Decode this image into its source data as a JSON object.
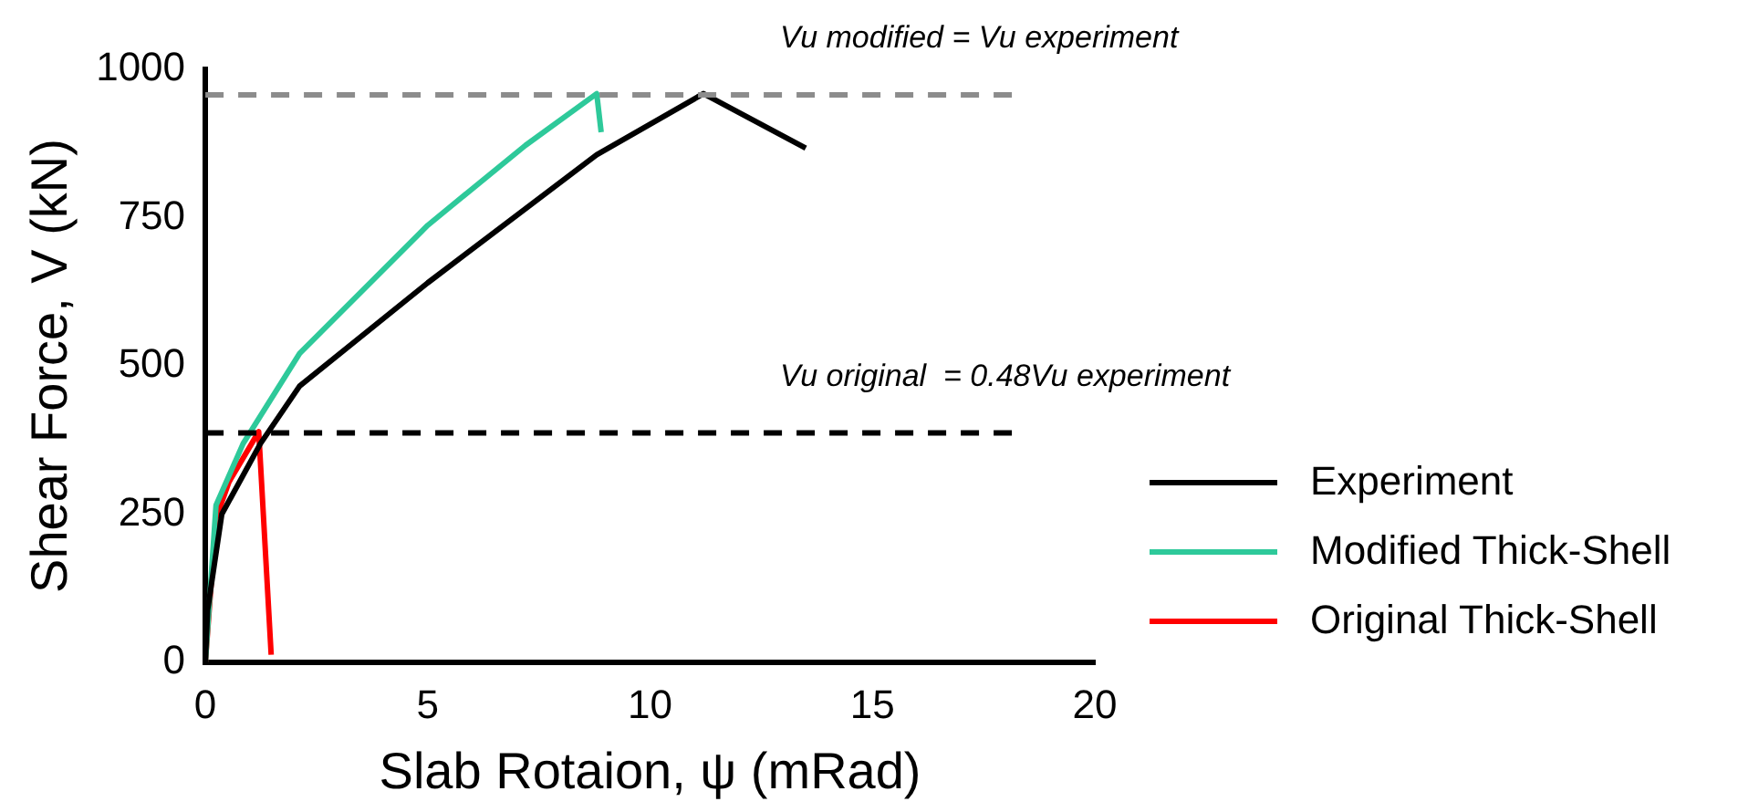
{
  "chart_data": {
    "type": "line",
    "xlabel": "Slab Rotaion, ψ (mRad)",
    "ylabel": "Shear Force, V (kN)",
    "xlim": [
      0,
      20
    ],
    "xticks": [
      0,
      5,
      10,
      15,
      20
    ],
    "ylim": [
      0,
      1000
    ],
    "yticks": [
      0,
      250,
      500,
      750,
      1000
    ],
    "grid": false,
    "legend": "right",
    "marker": "none",
    "line_style": "solid",
    "series": [
      {
        "name": "Experiment",
        "color": "#000000",
        "x": [
          0,
          0.05,
          0.37,
          1.24,
          2.12,
          5.0,
          8.8,
          11.2,
          13.5
        ],
        "values": [
          0,
          88,
          250,
          369,
          466,
          640,
          856,
          959,
          867
        ]
      },
      {
        "name": "Modified Thick-Shell",
        "color": "#2ec99a",
        "x": [
          0,
          0.24,
          0.85,
          2.12,
          5.0,
          7.2,
          8.8,
          8.9
        ],
        "values": [
          0,
          265,
          369,
          521,
          737,
          872,
          959,
          894
        ]
      },
      {
        "name": "Original Thick-Shell",
        "color": "#ff0000",
        "x": [
          0,
          0.24,
          0.53,
          1.2,
          1.48
        ],
        "values": [
          0,
          243,
          304,
          389,
          13
        ]
      }
    ],
    "annotations": [
      "Vu modified = Vu experiment",
      "Vu original  = 0.48Vu experiment"
    ],
    "ref_lines": [
      {
        "axis": "y",
        "value": 957,
        "color": "#8c8c8c",
        "line_style": "dashed"
      },
      {
        "axis": "y",
        "value": 387,
        "color": "#000000",
        "line_style": "dashed"
      }
    ]
  }
}
